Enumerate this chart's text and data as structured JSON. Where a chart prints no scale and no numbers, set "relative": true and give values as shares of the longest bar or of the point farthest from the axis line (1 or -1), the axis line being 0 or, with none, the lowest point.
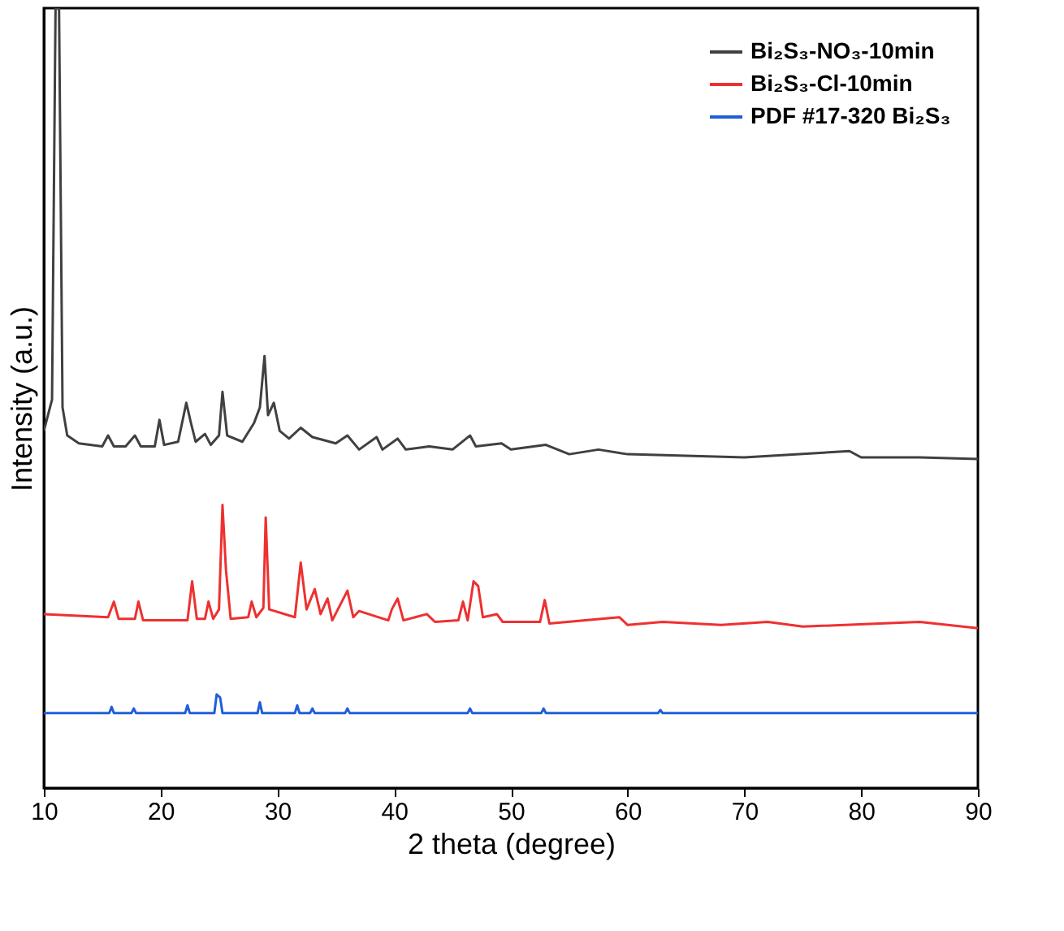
{
  "chart_data": {
    "type": "line",
    "relative": true,
    "xlabel": "2 theta (degree)",
    "ylabel": "Intensity (a.u.)",
    "xlim": [
      10,
      90
    ],
    "xticks": [
      10,
      20,
      30,
      40,
      50,
      60,
      70,
      80,
      90
    ],
    "legend": "top right",
    "grid": false,
    "marker": "none",
    "line_style": "solid",
    "series": [
      {
        "name": "Bi₂S₃-NO₃-10min",
        "color": "#404040",
        "x": [
          10,
          10.7,
          11.0,
          11.3,
          11.6,
          12,
          13,
          15,
          15.5,
          16,
          17,
          17.8,
          18.3,
          19.5,
          19.9,
          20.3,
          21.5,
          22.2,
          22.6,
          23,
          23.8,
          24.3,
          25.0,
          25.3,
          25.7,
          27,
          28.0,
          28.5,
          28.9,
          29.2,
          29.7,
          30.2,
          31,
          32,
          33,
          35,
          36,
          37,
          38.5,
          39,
          40.3,
          41,
          43,
          45,
          46.5,
          47,
          49.2,
          50,
          53,
          55,
          57.5,
          60,
          65,
          70,
          79,
          80,
          85,
          90
        ],
        "values": [
          0.458,
          0.498,
          1.0,
          1.0,
          0.488,
          0.452,
          0.442,
          0.438,
          0.452,
          0.438,
          0.438,
          0.452,
          0.438,
          0.438,
          0.472,
          0.44,
          0.444,
          0.494,
          0.468,
          0.444,
          0.454,
          0.44,
          0.452,
          0.508,
          0.452,
          0.444,
          0.468,
          0.488,
          0.554,
          0.478,
          0.494,
          0.458,
          0.448,
          0.462,
          0.45,
          0.442,
          0.452,
          0.434,
          0.45,
          0.434,
          0.448,
          0.434,
          0.438,
          0.434,
          0.452,
          0.438,
          0.442,
          0.434,
          0.44,
          0.428,
          0.434,
          0.428,
          0.426,
          0.424,
          0.432,
          0.424,
          0.424,
          0.422
        ]
      },
      {
        "name": "Bi₂S₃-Cl-10min",
        "color": "#ee3030",
        "x": [
          10,
          15.5,
          16,
          16.4,
          17.8,
          18.1,
          18.5,
          22.3,
          22.7,
          23.1,
          23.8,
          24.1,
          24.5,
          25.0,
          25.3,
          25.6,
          26,
          27.5,
          27.8,
          28.2,
          28.8,
          29.0,
          29.3,
          31.5,
          32.0,
          32.5,
          33.2,
          33.7,
          34.3,
          34.7,
          36.0,
          36.5,
          37.0,
          39.5,
          39.8,
          40.3,
          40.8,
          42.8,
          43.5,
          45.5,
          45.9,
          46.3,
          46.8,
          47.2,
          47.6,
          48.8,
          49.3,
          52.5,
          52.9,
          53.3,
          59.3,
          60,
          63,
          68,
          72,
          75,
          85,
          90
        ],
        "values": [
          0.223,
          0.219,
          0.239,
          0.217,
          0.217,
          0.239,
          0.215,
          0.215,
          0.265,
          0.217,
          0.217,
          0.239,
          0.217,
          0.229,
          0.363,
          0.279,
          0.217,
          0.219,
          0.239,
          0.219,
          0.231,
          0.347,
          0.229,
          0.219,
          0.289,
          0.229,
          0.255,
          0.223,
          0.243,
          0.215,
          0.253,
          0.219,
          0.227,
          0.215,
          0.229,
          0.243,
          0.215,
          0.223,
          0.213,
          0.215,
          0.239,
          0.215,
          0.265,
          0.259,
          0.219,
          0.223,
          0.213,
          0.213,
          0.241,
          0.211,
          0.219,
          0.209,
          0.213,
          0.209,
          0.213,
          0.207,
          0.213,
          0.205
        ]
      },
      {
        "name": "PDF #17-320 Bi₂S₃",
        "color": "#1f5fd8",
        "x": [
          10,
          15.6,
          15.8,
          16.0,
          17.5,
          17.7,
          17.9,
          22.1,
          22.3,
          22.5,
          24.6,
          24.8,
          25.1,
          25.3,
          28.3,
          28.5,
          28.7,
          31.5,
          31.7,
          31.9,
          32.8,
          33.0,
          33.2,
          35.8,
          36.0,
          36.2,
          46.3,
          46.5,
          46.7,
          52.6,
          52.8,
          53.0,
          62.6,
          62.8,
          63.0,
          90
        ],
        "values": [
          0.096,
          0.096,
          0.104,
          0.096,
          0.096,
          0.102,
          0.096,
          0.096,
          0.106,
          0.096,
          0.096,
          0.12,
          0.116,
          0.096,
          0.096,
          0.11,
          0.096,
          0.096,
          0.106,
          0.096,
          0.096,
          0.102,
          0.096,
          0.096,
          0.102,
          0.096,
          0.096,
          0.102,
          0.096,
          0.096,
          0.102,
          0.096,
          0.096,
          0.1,
          0.096,
          0.096
        ]
      }
    ]
  }
}
